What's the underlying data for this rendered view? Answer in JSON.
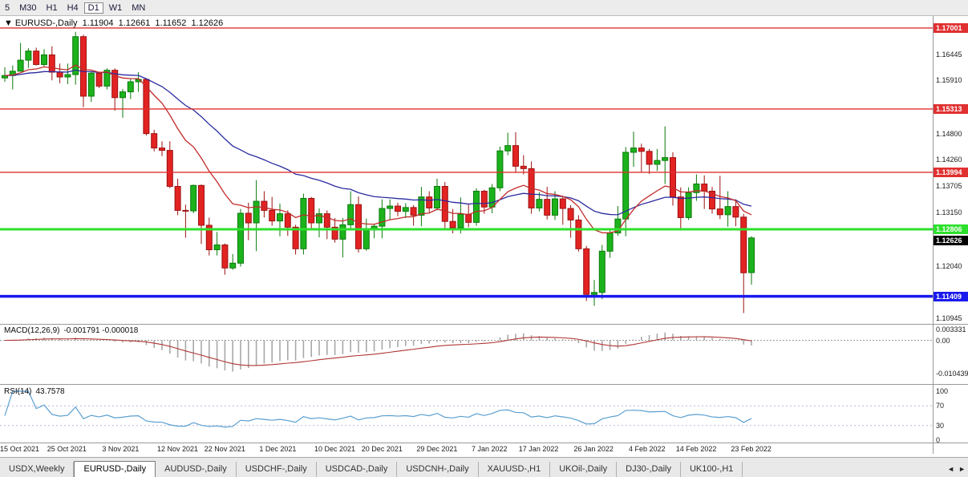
{
  "toolbar": {
    "timeframes": [
      "5",
      "M30",
      "H1",
      "H4",
      "D1",
      "W1",
      "MN"
    ],
    "active": "D1"
  },
  "chart_header": {
    "dropdown_icon": "▼",
    "symbol": "EURUSD-,Daily",
    "open": "1.11904",
    "high": "1.12661",
    "low": "1.11652",
    "close": "1.12626"
  },
  "chart_data": {
    "type": "candlestick",
    "title": "EURUSD-,Daily",
    "symbol": "EURUSD-",
    "timeframe": "Daily",
    "ylim": [
      1.10835,
      1.1725
    ],
    "grid": false,
    "colors": {
      "up": "#1cb21c",
      "up_border": "#0b7a0b",
      "down": "#e32222",
      "down_border": "#9c1212",
      "macd_hist": "#a8a8a8",
      "macd_signal": "#b03434",
      "rsi_line": "#5b9fd0",
      "hline_red": "#e03030",
      "hline_green": "#2de02d",
      "hline_blue": "#1a1aee",
      "current_badge": "#000000"
    },
    "price_ticks": [
      "1.16445",
      "1.15910",
      "1.14800",
      "1.14260",
      "1.13705",
      "1.13150",
      "1.12040",
      "1.10945"
    ],
    "hlines": [
      {
        "price": 1.17001,
        "label": "1.17001",
        "color": "#e03030",
        "width": 1.4
      },
      {
        "price": 1.15313,
        "label": "1.15313",
        "color": "#e03030",
        "width": 1.4
      },
      {
        "price": 1.13994,
        "label": "1.13994",
        "color": "#e03030",
        "width": 1.4
      },
      {
        "price": 1.12806,
        "label": "1.12806",
        "color": "#2de02d",
        "width": 3
      },
      {
        "price": 1.11409,
        "label": "1.11409",
        "color": "#1a1aee",
        "width": 3.5
      }
    ],
    "current_price": 1.12626,
    "current_price_label": "1.12626",
    "moving_averages": [
      {
        "name": "ma-slow",
        "period": 34,
        "color": "#2b2ba0"
      },
      {
        "name": "ma-fast",
        "period": 13,
        "color": "#c22b2b"
      }
    ],
    "indicators": {
      "macd": {
        "label": "MACD(12,26,9)",
        "values_label": "-0.001791 -0.000018",
        "fast": 12,
        "slow": 26,
        "signal": 9,
        "axis": [
          {
            "v": 0.003331,
            "label": "0.003331"
          },
          {
            "v": 0,
            "label": "0.00"
          },
          {
            "v": -0.010439,
            "label": "-0.010439"
          }
        ]
      },
      "rsi": {
        "label": "RSI(14)",
        "value_label": "43.7578",
        "period": 14,
        "levels": [
          70,
          30
        ],
        "axis": [
          "100",
          "70",
          "30",
          "0"
        ]
      }
    },
    "x_labels": [
      {
        "i": 0,
        "label": "15 Oct 2021"
      },
      {
        "i": 6,
        "label": "25 Oct 2021"
      },
      {
        "i": 13,
        "label": "3 Nov 2021"
      },
      {
        "i": 20,
        "label": "12 Nov 2021"
      },
      {
        "i": 26,
        "label": "22 Nov 2021"
      },
      {
        "i": 33,
        "label": "1 Dec 2021"
      },
      {
        "i": 40,
        "label": "10 Dec 2021"
      },
      {
        "i": 46,
        "label": "20 Dec 2021"
      },
      {
        "i": 53,
        "label": "29 Dec 2021"
      },
      {
        "i": 60,
        "label": "7 Jan 2022"
      },
      {
        "i": 66,
        "label": "17 Jan 2022"
      },
      {
        "i": 73,
        "label": "26 Jan 2022"
      },
      {
        "i": 80,
        "label": "4 Feb 2022"
      },
      {
        "i": 86,
        "label": "14 Feb 2022"
      },
      {
        "i": 93,
        "label": "23 Feb 2022"
      }
    ],
    "candles": [
      [
        "15 Oct 2021",
        1.1596,
        1.1618,
        1.1588,
        1.1601
      ],
      [
        "18 Oct 2021",
        1.1601,
        1.1622,
        1.1572,
        1.161
      ],
      [
        "19 Oct 2021",
        1.161,
        1.1669,
        1.1609,
        1.1633
      ],
      [
        "20 Oct 2021",
        1.1633,
        1.1658,
        1.1617,
        1.1652
      ],
      [
        "21 Oct 2021",
        1.1652,
        1.1659,
        1.1622,
        1.1624
      ],
      [
        "22 Oct 2021",
        1.1624,
        1.1656,
        1.162,
        1.1644
      ],
      [
        "25 Oct 2021",
        1.1644,
        1.1662,
        1.1591,
        1.1608
      ],
      [
        "26 Oct 2021",
        1.1608,
        1.1626,
        1.1585,
        1.1598
      ],
      [
        "27 Oct 2021",
        1.1598,
        1.1626,
        1.1583,
        1.1603
      ],
      [
        "28 Oct 2021",
        1.1603,
        1.1692,
        1.1582,
        1.1682
      ],
      [
        "29 Oct 2021",
        1.1682,
        1.1686,
        1.1535,
        1.1558
      ],
      [
        "1 Nov 2021",
        1.1558,
        1.1609,
        1.1546,
        1.1606
      ],
      [
        "2 Nov 2021",
        1.1606,
        1.1608,
        1.1575,
        1.1579
      ],
      [
        "3 Nov 2021",
        1.1579,
        1.1616,
        1.1572,
        1.1612
      ],
      [
        "4 Nov 2021",
        1.1612,
        1.1616,
        1.1528,
        1.1555
      ],
      [
        "5 Nov 2021",
        1.1555,
        1.1573,
        1.1513,
        1.1567
      ],
      [
        "8 Nov 2021",
        1.1567,
        1.1594,
        1.1552,
        1.1588
      ],
      [
        "9 Nov 2021",
        1.1588,
        1.1608,
        1.1567,
        1.1593
      ],
      [
        "10 Nov 2021",
        1.1593,
        1.1595,
        1.1476,
        1.148
      ],
      [
        "11 Nov 2021",
        1.148,
        1.1488,
        1.1443,
        1.145
      ],
      [
        "12 Nov 2021",
        1.145,
        1.1464,
        1.1433,
        1.1445
      ],
      [
        "15 Nov 2021",
        1.1445,
        1.1464,
        1.1366,
        1.137
      ],
      [
        "16 Nov 2021",
        1.137,
        1.1386,
        1.131,
        1.132
      ],
      [
        "17 Nov 2021",
        1.132,
        1.1332,
        1.1263,
        1.1319
      ],
      [
        "18 Nov 2021",
        1.1319,
        1.1374,
        1.1314,
        1.1372
      ],
      [
        "19 Nov 2021",
        1.1372,
        1.1374,
        1.125,
        1.1289
      ],
      [
        "22 Nov 2021",
        1.1289,
        1.1305,
        1.1226,
        1.1238
      ],
      [
        "23 Nov 2021",
        1.1238,
        1.1275,
        1.1226,
        1.1248
      ],
      [
        "24 Nov 2021",
        1.1248,
        1.1251,
        1.1186,
        1.12
      ],
      [
        "25 Nov 2021",
        1.12,
        1.1229,
        1.1196,
        1.121
      ],
      [
        "26 Nov 2021",
        1.121,
        1.1323,
        1.1203,
        1.1314
      ],
      [
        "29 Nov 2021",
        1.1314,
        1.1336,
        1.1258,
        1.1294
      ],
      [
        "30 Nov 2021",
        1.1294,
        1.1383,
        1.1235,
        1.1339
      ],
      [
        "1 Dec 2021",
        1.1339,
        1.136,
        1.1305,
        1.132
      ],
      [
        "2 Dec 2021",
        1.132,
        1.1348,
        1.1288,
        1.1298
      ],
      [
        "3 Dec 2021",
        1.1298,
        1.1334,
        1.1266,
        1.1313
      ],
      [
        "6 Dec 2021",
        1.1313,
        1.132,
        1.1267,
        1.1285
      ],
      [
        "7 Dec 2021",
        1.1285,
        1.129,
        1.1228,
        1.124
      ],
      [
        "8 Dec 2021",
        1.124,
        1.1355,
        1.1228,
        1.1345
      ],
      [
        "9 Dec 2021",
        1.1345,
        1.1348,
        1.128,
        1.1294
      ],
      [
        "10 Dec 2021",
        1.1294,
        1.1324,
        1.1264,
        1.1313
      ],
      [
        "13 Dec 2021",
        1.1313,
        1.132,
        1.126,
        1.1285
      ],
      [
        "14 Dec 2021",
        1.1285,
        1.1304,
        1.1253,
        1.126
      ],
      [
        "15 Dec 2021",
        1.126,
        1.1304,
        1.1222,
        1.129
      ],
      [
        "16 Dec 2021",
        1.129,
        1.136,
        1.1279,
        1.1332
      ],
      [
        "17 Dec 2021",
        1.1332,
        1.1349,
        1.1232,
        1.124
      ],
      [
        "20 Dec 2021",
        1.124,
        1.1303,
        1.1236,
        1.128
      ],
      [
        "21 Dec 2021",
        1.128,
        1.1292,
        1.1262,
        1.1287
      ],
      [
        "22 Dec 2021",
        1.1287,
        1.1343,
        1.1262,
        1.1324
      ],
      [
        "23 Dec 2021",
        1.1324,
        1.1343,
        1.1301,
        1.1329
      ],
      [
        "24 Dec 2021",
        1.1329,
        1.1336,
        1.1308,
        1.1318
      ],
      [
        "27 Dec 2021",
        1.1318,
        1.1335,
        1.1304,
        1.1326
      ],
      [
        "28 Dec 2021",
        1.1326,
        1.1331,
        1.1288,
        1.131
      ],
      [
        "29 Dec 2021",
        1.131,
        1.1369,
        1.1287,
        1.1348
      ],
      [
        "30 Dec 2021",
        1.1348,
        1.136,
        1.1316,
        1.1325
      ],
      [
        "31 Dec 2021",
        1.1325,
        1.1386,
        1.132,
        1.137
      ],
      [
        "3 Jan 2022",
        1.137,
        1.1379,
        1.1279,
        1.1297
      ],
      [
        "4 Jan 2022",
        1.1297,
        1.1323,
        1.1272,
        1.1284
      ],
      [
        "5 Jan 2022",
        1.1284,
        1.1347,
        1.1272,
        1.1312
      ],
      [
        "6 Jan 2022",
        1.1312,
        1.1332,
        1.1285,
        1.1295
      ],
      [
        "7 Jan 2022",
        1.1295,
        1.1366,
        1.1288,
        1.136
      ],
      [
        "10 Jan 2022",
        1.136,
        1.1363,
        1.1313,
        1.1327
      ],
      [
        "11 Jan 2022",
        1.1327,
        1.1375,
        1.1314,
        1.1367
      ],
      [
        "12 Jan 2022",
        1.1367,
        1.1453,
        1.136,
        1.1444
      ],
      [
        "13 Jan 2022",
        1.1444,
        1.1482,
        1.1435,
        1.1455
      ],
      [
        "14 Jan 2022",
        1.1455,
        1.1483,
        1.1398,
        1.1412
      ],
      [
        "17 Jan 2022",
        1.1412,
        1.1435,
        1.1395,
        1.1407
      ],
      [
        "18 Jan 2022",
        1.1407,
        1.1422,
        1.1313,
        1.1325
      ],
      [
        "19 Jan 2022",
        1.1325,
        1.1358,
        1.1318,
        1.1343
      ],
      [
        "20 Jan 2022",
        1.1343,
        1.1369,
        1.1301,
        1.131
      ],
      [
        "21 Jan 2022",
        1.131,
        1.136,
        1.13,
        1.1344
      ],
      [
        "24 Jan 2022",
        1.1344,
        1.1349,
        1.129,
        1.1324
      ],
      [
        "25 Jan 2022",
        1.1324,
        1.1331,
        1.1263,
        1.13
      ],
      [
        "26 Jan 2022",
        1.13,
        1.131,
        1.1234,
        1.124
      ],
      [
        "27 Jan 2022",
        1.124,
        1.1246,
        1.1131,
        1.1145
      ],
      [
        "28 Jan 2022",
        1.1145,
        1.1175,
        1.1121,
        1.1149
      ],
      [
        "31 Jan 2022",
        1.1149,
        1.1248,
        1.1135,
        1.1235
      ],
      [
        "1 Feb 2022",
        1.1235,
        1.128,
        1.1221,
        1.1273
      ],
      [
        "2 Feb 2022",
        1.1273,
        1.1329,
        1.1267,
        1.1302
      ],
      [
        "3 Feb 2022",
        1.1302,
        1.1452,
        1.1266,
        1.1441
      ],
      [
        "4 Feb 2022",
        1.1441,
        1.1484,
        1.1411,
        1.145
      ],
      [
        "7 Feb 2022",
        1.145,
        1.1459,
        1.14,
        1.1443
      ],
      [
        "8 Feb 2022",
        1.1443,
        1.1448,
        1.1396,
        1.1416
      ],
      [
        "9 Feb 2022",
        1.1416,
        1.1448,
        1.1402,
        1.1424
      ],
      [
        "10 Feb 2022",
        1.1424,
        1.1495,
        1.1375,
        1.143
      ],
      [
        "11 Feb 2022",
        1.143,
        1.1441,
        1.133,
        1.1348
      ],
      [
        "14 Feb 2022",
        1.1348,
        1.1368,
        1.1278,
        1.1305
      ],
      [
        "15 Feb 2022",
        1.1305,
        1.1368,
        1.13,
        1.1357
      ],
      [
        "16 Feb 2022",
        1.1357,
        1.1395,
        1.134,
        1.1375
      ],
      [
        "17 Feb 2022",
        1.1375,
        1.1393,
        1.1323,
        1.136
      ],
      [
        "18 Feb 2022",
        1.136,
        1.1369,
        1.1313,
        1.1323
      ],
      [
        "21 Feb 2022",
        1.1323,
        1.1392,
        1.1302,
        1.1311
      ],
      [
        "22 Feb 2022",
        1.1311,
        1.136,
        1.1286,
        1.1328
      ],
      [
        "23 Feb 2022",
        1.1328,
        1.1343,
        1.1287,
        1.1306
      ],
      [
        "24 Feb 2022",
        1.1306,
        1.1313,
        1.1106,
        1.119
      ],
      [
        "25 Feb 2022",
        1.11904,
        1.12661,
        1.11652,
        1.12626
      ]
    ]
  },
  "bottom_tabs": {
    "items": [
      {
        "label": "USDX,Weekly",
        "active": false
      },
      {
        "label": "EURUSD-,Daily",
        "active": true
      },
      {
        "label": "AUDUSD-,Daily",
        "active": false
      },
      {
        "label": "USDCHF-,Daily",
        "active": false
      },
      {
        "label": "USDCAD-,Daily",
        "active": false
      },
      {
        "label": "USDCNH-,Daily",
        "active": false
      },
      {
        "label": "XAUUSD-,H1",
        "active": false
      },
      {
        "label": "UKOil-,Daily",
        "active": false
      },
      {
        "label": "DJ30-,Daily",
        "active": false
      },
      {
        "label": "UK100-,H1",
        "active": false
      }
    ],
    "scroll_left_icon": "◄",
    "scroll_right_icon": "►"
  }
}
